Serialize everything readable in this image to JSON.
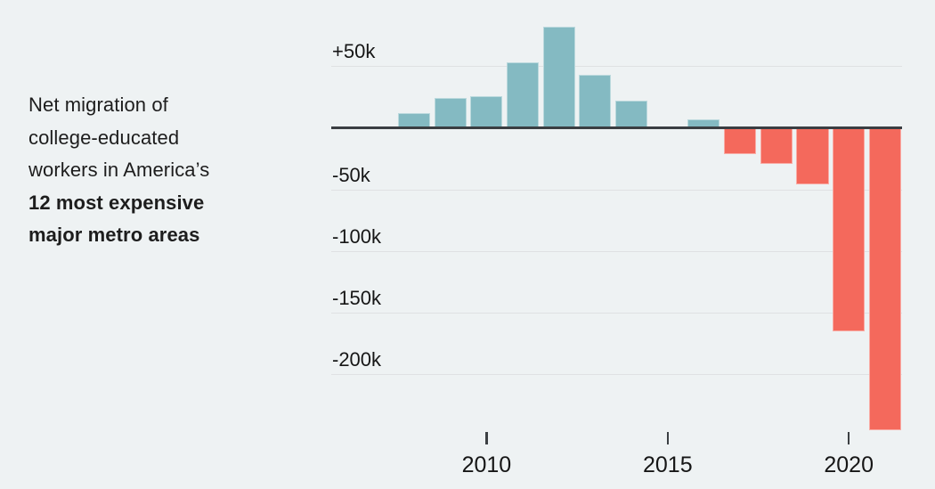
{
  "colors": {
    "background": "#eef2f3",
    "positive_bar": "#84bac2",
    "negative_bar": "#f4695c",
    "zero_axis": "#3a3e42",
    "gridline": "#dfe1e3",
    "text": "#1d1d1d"
  },
  "description": {
    "lines": [
      {
        "text": "Net migration of",
        "bold": false
      },
      {
        "text": "college-educated",
        "bold": false
      },
      {
        "text": "workers in America’s",
        "bold": false
      },
      {
        "text": "12 most expensive",
        "bold": true
      },
      {
        "text": "major metro areas",
        "bold": true
      }
    ]
  },
  "chart_data": {
    "type": "bar",
    "title": "Net migration of college-educated workers in America’s 12 most expensive major metro areas",
    "x": [
      2008,
      2009,
      2010,
      2011,
      2012,
      2013,
      2014,
      2015,
      2016,
      2017,
      2018,
      2019,
      2020,
      2021
    ],
    "values": [
      12000,
      24000,
      26000,
      53000,
      82000,
      43000,
      22000,
      0,
      7000,
      -21000,
      -29000,
      -46000,
      -165000,
      -245000
    ],
    "xlabel": "",
    "ylabel": "",
    "ylim": [
      -250000,
      90000
    ],
    "grid": true,
    "legend": null,
    "yticks": [
      {
        "value": 50000,
        "label": "+50k"
      },
      {
        "value": -50000,
        "label": "-50k"
      },
      {
        "value": -100000,
        "label": "-100k"
      },
      {
        "value": -150000,
        "label": "-150k"
      },
      {
        "value": -200000,
        "label": "-200k"
      }
    ],
    "xticks": [
      {
        "value": 2010,
        "label": "2010"
      },
      {
        "value": 2015,
        "label": "2015"
      },
      {
        "value": 2020,
        "label": "2020"
      }
    ]
  }
}
